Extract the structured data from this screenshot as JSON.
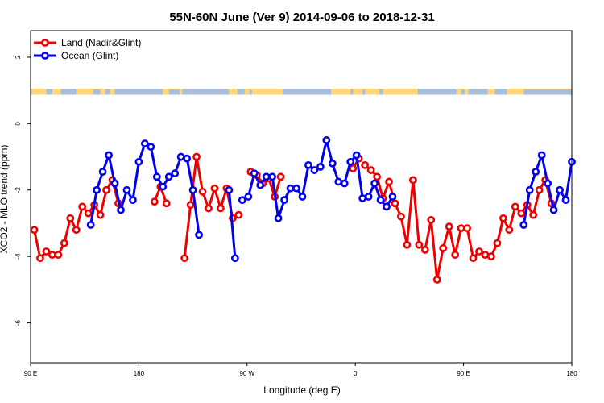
{
  "chart_data": {
    "type": "line",
    "title": "55N-60N June (Ver 9)   2014-09-06 to 2018-12-31",
    "xlabel": "Longitude (deg E)",
    "ylabel": "XCO2 - MLO trend (ppm)",
    "xlim": [
      90,
      540
    ],
    "ylim": [
      -7.2,
      2.8
    ],
    "x_ticks": [
      {
        "value": 90,
        "label": "90 E"
      },
      {
        "value": 180,
        "label": "180"
      },
      {
        "value": 270,
        "label": "90 W"
      },
      {
        "value": 360,
        "label": "0"
      },
      {
        "value": 450,
        "label": "90 E"
      },
      {
        "value": 540,
        "label": "180"
      }
    ],
    "y_ticks": [
      {
        "value": 2,
        "label": "2"
      },
      {
        "value": 0,
        "label": "0"
      },
      {
        "value": -2,
        "label": "-2"
      },
      {
        "value": -4,
        "label": "-4"
      },
      {
        "value": -6,
        "label": "-6"
      }
    ],
    "grid": false,
    "legend": {
      "position": "top-left"
    },
    "land_strip": {
      "y_range": [
        0.87,
        1.05
      ],
      "land_color": "#FFD77A",
      "ocean_color": "#A9BEDC"
    },
    "series": [
      {
        "name": "Land (Nadir&Glint)",
        "color": "#EE0000",
        "segments": [
          [
            [
              93,
              -3.2
            ],
            [
              98,
              -4.05
            ],
            [
              103,
              -3.85
            ],
            [
              108,
              -3.95
            ],
            [
              113,
              -3.95
            ],
            [
              118,
              -3.6
            ],
            [
              123,
              -2.85
            ],
            [
              128,
              -3.2
            ],
            [
              133,
              -2.5
            ],
            [
              138,
              -2.7
            ],
            [
              143,
              -2.45
            ],
            [
              148,
              -2.75
            ],
            [
              153,
              -2.0
            ],
            [
              158,
              -1.7
            ],
            [
              163,
              -2.4
            ]
          ],
          [
            [
              193,
              -2.35
            ],
            [
              198,
              -1.9
            ],
            [
              203,
              -2.4
            ]
          ],
          [
            [
              218,
              -4.05
            ],
            [
              223,
              -2.45
            ],
            [
              228,
              -1.0
            ],
            [
              233,
              -2.05
            ],
            [
              238,
              -2.55
            ],
            [
              243,
              -1.95
            ],
            [
              248,
              -2.55
            ],
            [
              253,
              -1.95
            ],
            [
              258,
              -2.85
            ],
            [
              263,
              -2.75
            ]
          ],
          [
            [
              273,
              -1.45
            ],
            [
              278,
              -1.55
            ],
            [
              283,
              -1.8
            ],
            [
              288,
              -1.65
            ],
            [
              293,
              -2.2
            ],
            [
              298,
              -1.6
            ]
          ],
          [
            [
              358,
              -1.35
            ],
            [
              363,
              -1.05
            ]
          ],
          [
            [
              368,
              -1.25
            ],
            [
              373,
              -1.4
            ],
            [
              378,
              -1.6
            ],
            [
              383,
              -2.25
            ],
            [
              388,
              -1.75
            ],
            [
              393,
              -2.4
            ],
            [
              398,
              -2.8
            ],
            [
              403,
              -3.65
            ],
            [
              408,
              -1.7
            ],
            [
              413,
              -3.65
            ],
            [
              418,
              -3.8
            ],
            [
              423,
              -2.9
            ],
            [
              428,
              -4.7
            ],
            [
              433,
              -3.75
            ],
            [
              438,
              -3.1
            ],
            [
              443,
              -3.95
            ],
            [
              448,
              -3.15
            ],
            [
              453,
              -3.15
            ],
            [
              458,
              -4.05
            ],
            [
              463,
              -3.85
            ],
            [
              468,
              -3.95
            ],
            [
              473,
              -4.0
            ],
            [
              478,
              -3.6
            ],
            [
              483,
              -2.85
            ],
            [
              488,
              -3.2
            ],
            [
              493,
              -2.5
            ],
            [
              498,
              -2.7
            ],
            [
              503,
              -2.45
            ],
            [
              508,
              -2.75
            ],
            [
              513,
              -2.0
            ],
            [
              518,
              -1.7
            ],
            [
              523,
              -2.4
            ]
          ]
        ]
      },
      {
        "name": "Ocean (Glint)",
        "color": "#0000EE",
        "segments": [
          [
            [
              140,
              -3.05
            ],
            [
              145,
              -2.0
            ],
            [
              150,
              -1.45
            ],
            [
              155,
              -0.95
            ],
            [
              160,
              -1.8
            ],
            [
              165,
              -2.6
            ],
            [
              170,
              -2.0
            ],
            [
              175,
              -2.3
            ],
            [
              180,
              -1.15
            ],
            [
              185,
              -0.6
            ],
            [
              190,
              -0.7
            ],
            [
              195,
              -1.6
            ],
            [
              200,
              -1.9
            ],
            [
              205,
              -1.6
            ],
            [
              210,
              -1.5
            ],
            [
              215,
              -1.0
            ],
            [
              220,
              -1.05
            ],
            [
              225,
              -2.0
            ],
            [
              230,
              -3.35
            ]
          ],
          [
            [
              255,
              -2.0
            ],
            [
              260,
              -4.05
            ]
          ],
          [
            [
              266,
              -2.3
            ],
            [
              271,
              -2.2
            ],
            [
              276,
              -1.5
            ],
            [
              281,
              -1.85
            ],
            [
              286,
              -1.6
            ],
            [
              291,
              -1.6
            ],
            [
              296,
              -2.85
            ],
            [
              301,
              -2.3
            ],
            [
              306,
              -1.95
            ],
            [
              311,
              -1.95
            ],
            [
              316,
              -2.2
            ],
            [
              321,
              -1.25
            ],
            [
              326,
              -1.4
            ],
            [
              331,
              -1.3
            ],
            [
              336,
              -0.5
            ],
            [
              341,
              -1.2
            ],
            [
              346,
              -1.75
            ],
            [
              351,
              -1.8
            ],
            [
              356,
              -1.15
            ],
            [
              361,
              -0.95
            ],
            [
              366,
              -2.25
            ],
            [
              371,
              -2.2
            ],
            [
              376,
              -1.8
            ],
            [
              381,
              -2.3
            ],
            [
              386,
              -2.5
            ],
            [
              391,
              -2.2
            ]
          ],
          [
            [
              500,
              -3.05
            ],
            [
              505,
              -2.0
            ],
            [
              510,
              -1.45
            ],
            [
              515,
              -0.95
            ],
            [
              520,
              -1.8
            ],
            [
              525,
              -2.6
            ],
            [
              530,
              -2.0
            ],
            [
              535,
              -2.3
            ],
            [
              540,
              -1.15
            ]
          ]
        ]
      }
    ]
  }
}
